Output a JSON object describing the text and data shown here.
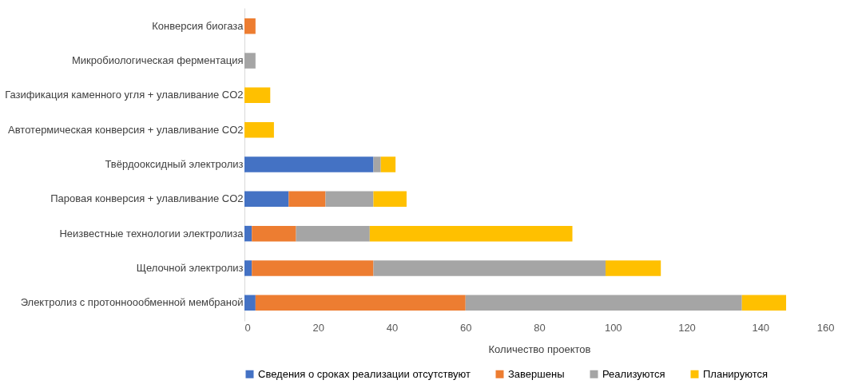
{
  "chart_data": {
    "type": "bar",
    "orientation": "horizontal",
    "stacked": true,
    "xlabel": "Количество проектов",
    "categories": [
      "Конверсия биогаза",
      "Микробиологическая ферментация",
      "Газификация каменного угля + улавливание CO2",
      "Автотермическая конверсия + улавливание CO2",
      "Твёрдооксидный электролиз",
      "Паровая конверсия + улавливание CO2",
      "Неизвестные технологии электролиза",
      "Щелочной электролиз",
      "Электролиз с протонноообменной мембраной"
    ],
    "series": [
      {
        "name": "Сведения о сроках реализации отсутствуют",
        "color": "#4472c4",
        "values": [
          null,
          null,
          null,
          null,
          35,
          12,
          2,
          2,
          3
        ]
      },
      {
        "name": "Завершены",
        "color": "#ed7d31",
        "values": [
          3,
          null,
          null,
          null,
          null,
          10,
          12,
          33,
          57
        ]
      },
      {
        "name": "Реализуются",
        "color": "#a5a5a5",
        "values": [
          null,
          3,
          null,
          null,
          2,
          13,
          20,
          63,
          75
        ]
      },
      {
        "name": "Планируются",
        "color": "#ffc000",
        "values": [
          null,
          null,
          7,
          8,
          4,
          9,
          55,
          15,
          12
        ]
      }
    ],
    "xlim": [
      0,
      160
    ],
    "xticks": [
      0,
      20,
      40,
      60,
      80,
      100,
      120,
      140,
      160
    ],
    "grid": false,
    "legend": "bottom"
  }
}
